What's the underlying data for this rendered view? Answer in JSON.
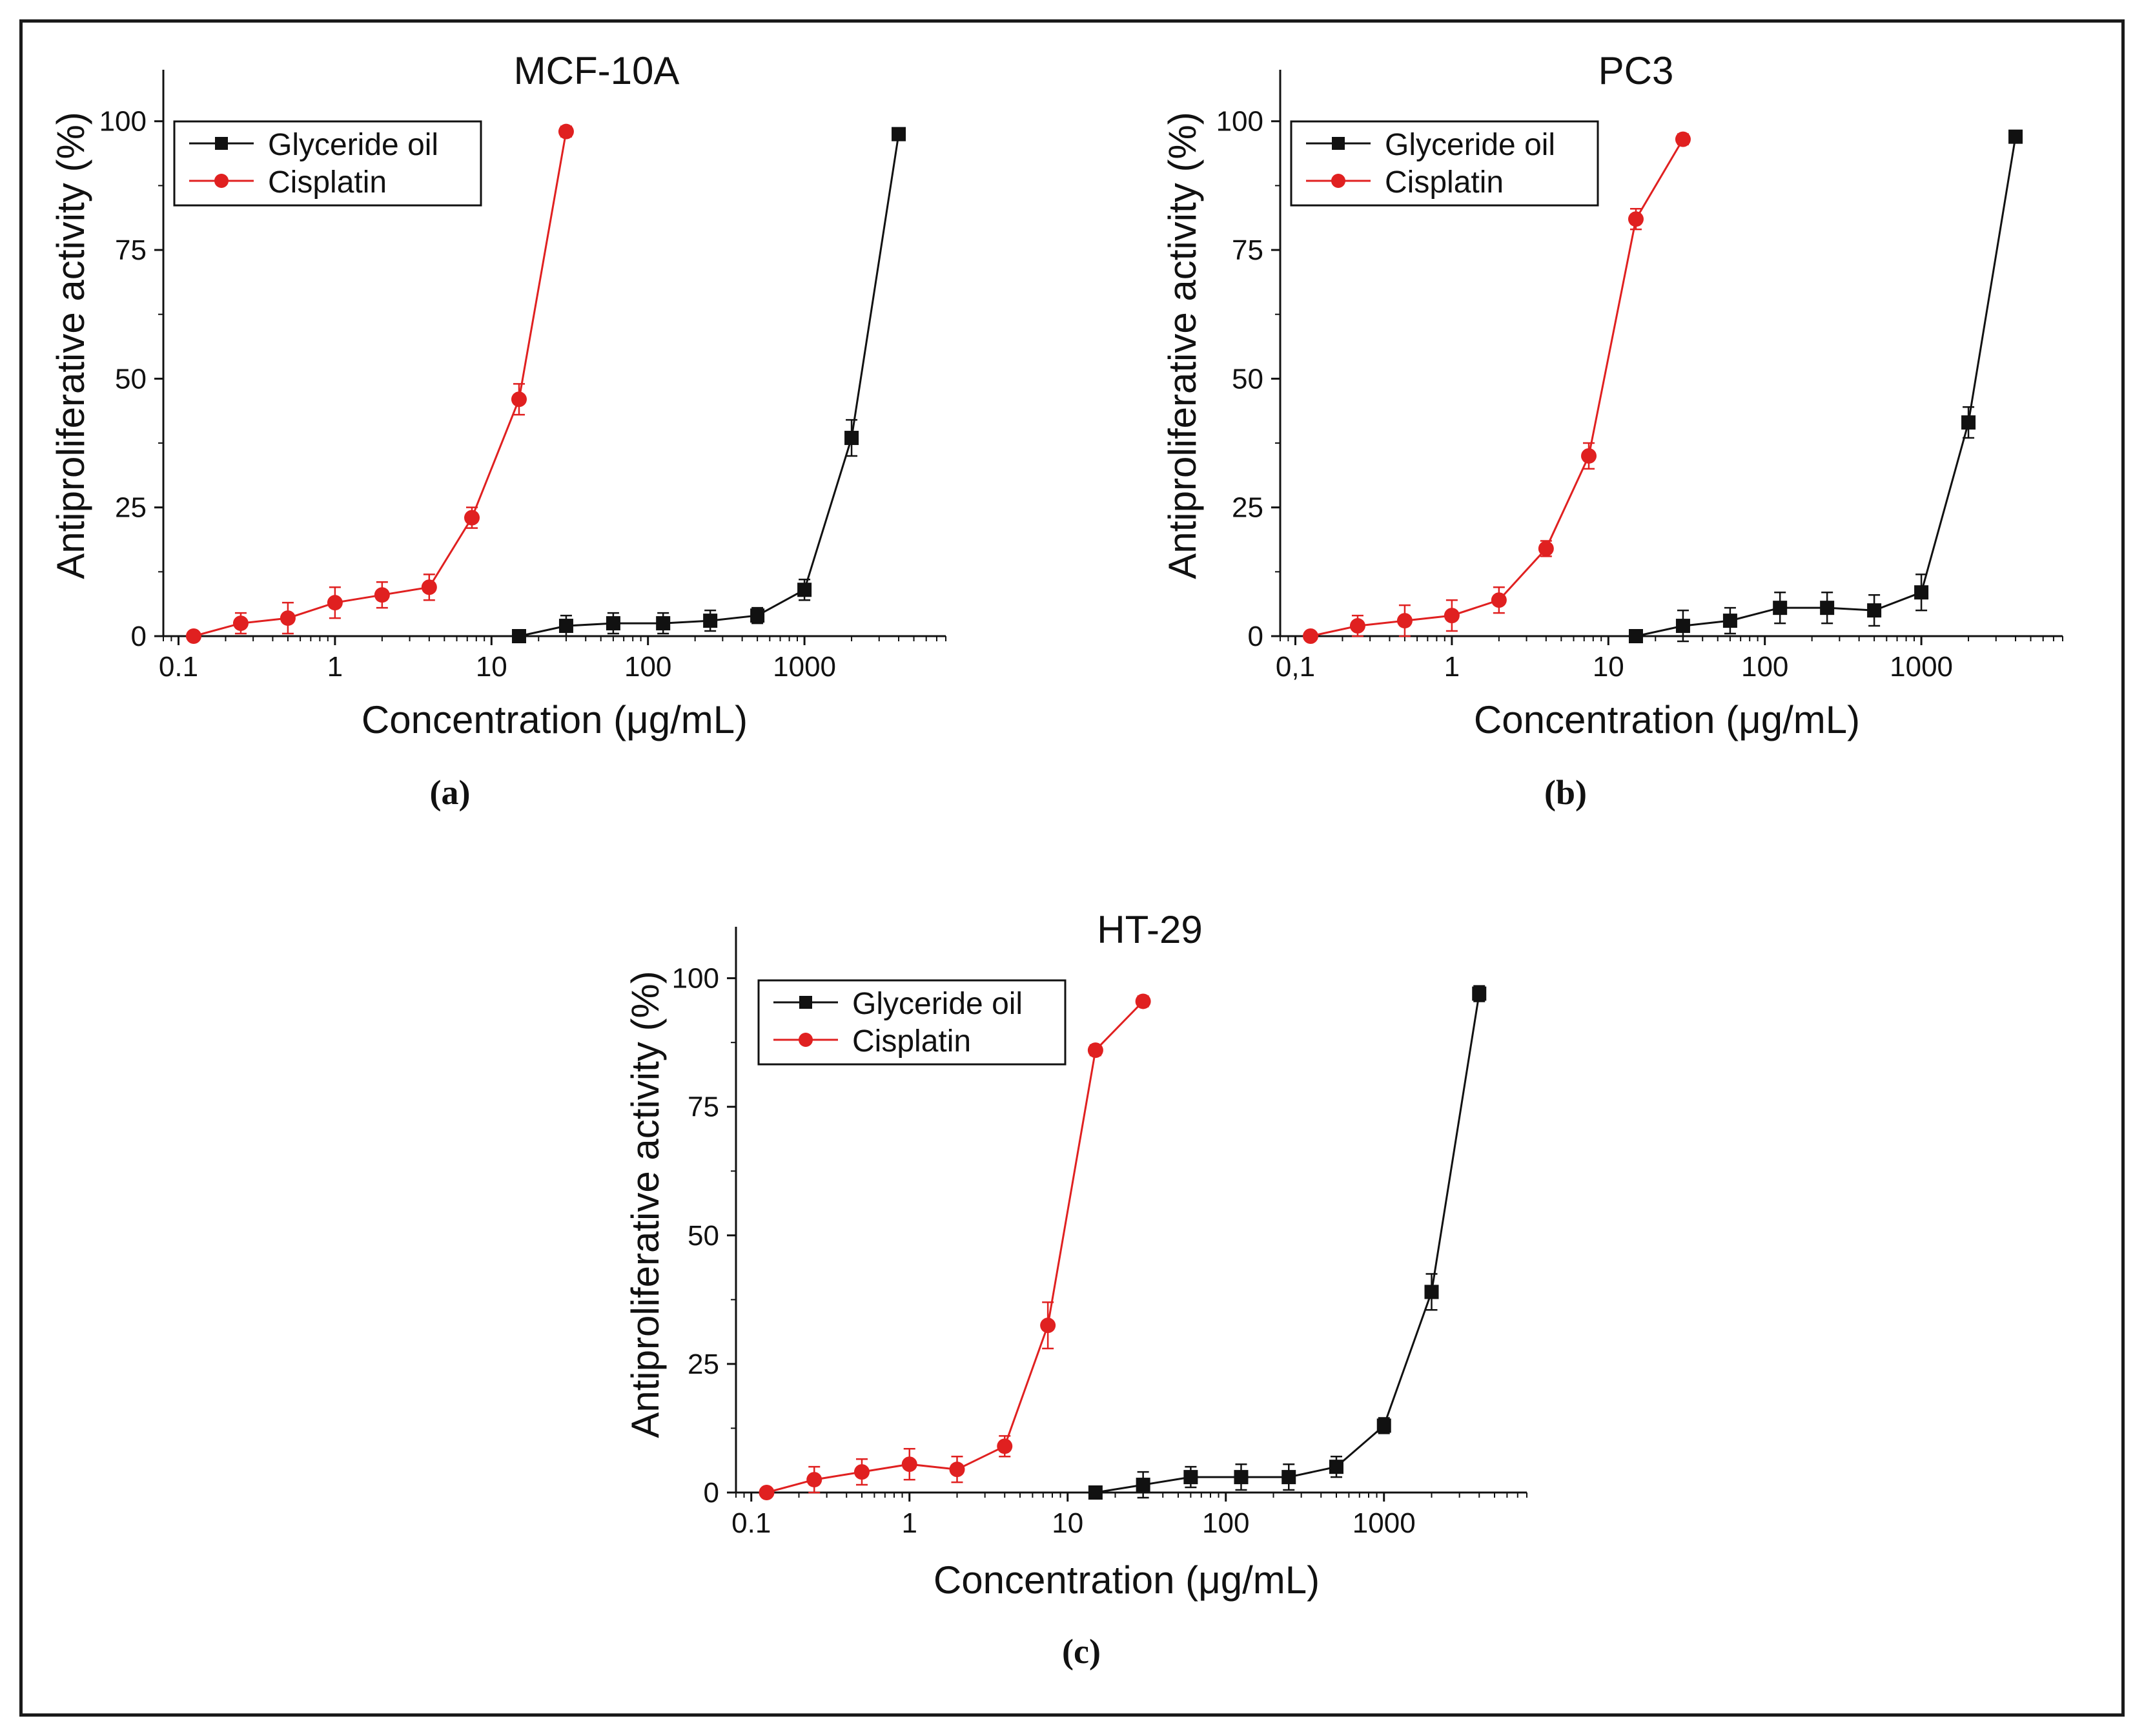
{
  "figure": {
    "colors": {
      "glyceride": "#111111",
      "cisplatin": "#e02020",
      "axis": "#111111"
    }
  },
  "chart_data": [
    {
      "type": "line",
      "panel_label": "(a)",
      "title": "MCF-10A",
      "xlabel": "Concentration (μg/mL)",
      "ylabel": "Antiproliferative activity (%)",
      "x_scale": "log",
      "xlim": [
        0.08,
        8000
      ],
      "ylim": [
        0,
        110
      ],
      "x_ticks": [
        0.1,
        1,
        10,
        100,
        1000
      ],
      "x_tick_labels": [
        "0.1",
        "1",
        "10",
        "100",
        "1000"
      ],
      "y_ticks": [
        0,
        25,
        50,
        75,
        100
      ],
      "y_tick_labels": [
        "0",
        "25",
        "50",
        "75",
        "100"
      ],
      "legend_position": "top-left",
      "series": [
        {
          "name": "Glyceride oil",
          "marker": "square",
          "color": "#111111",
          "x": [
            15,
            30,
            60,
            125,
            250,
            500,
            1000,
            2000,
            4000
          ],
          "y": [
            0,
            2,
            2.5,
            2.5,
            3,
            4,
            9,
            38.5,
            97.5
          ],
          "err": [
            0,
            2,
            2,
            2,
            2,
            1.5,
            2,
            3.5,
            1
          ]
        },
        {
          "name": "Cisplatin",
          "marker": "circle",
          "color": "#e02020",
          "x": [
            0.125,
            0.25,
            0.5,
            1,
            2,
            4,
            7.5,
            15,
            30
          ],
          "y": [
            0,
            2.5,
            3.5,
            6.5,
            8,
            9.5,
            23,
            46,
            98
          ],
          "err": [
            0,
            2,
            3,
            3,
            2.5,
            2.5,
            2,
            3,
            1
          ]
        }
      ]
    },
    {
      "type": "line",
      "panel_label": "(b)",
      "title": "PC3",
      "xlabel": "Concentration (μg/mL)",
      "ylabel": "Antiproliferative activity (%)",
      "x_scale": "log",
      "xlim": [
        0.08,
        8000
      ],
      "ylim": [
        0,
        110
      ],
      "x_ticks": [
        0.1,
        1,
        10,
        100,
        1000
      ],
      "x_tick_labels": [
        "0,1",
        "1",
        "10",
        "100",
        "1000"
      ],
      "y_ticks": [
        0,
        25,
        50,
        75,
        100
      ],
      "y_tick_labels": [
        "0",
        "25",
        "50",
        "75",
        "100"
      ],
      "legend_position": "top-left",
      "series": [
        {
          "name": "Glyceride oil",
          "marker": "square",
          "color": "#111111",
          "x": [
            15,
            30,
            60,
            125,
            250,
            500,
            1000,
            2000,
            4000
          ],
          "y": [
            0,
            2,
            3,
            5.5,
            5.5,
            5,
            8.5,
            41.5,
            97
          ],
          "err": [
            0,
            3,
            2.5,
            3,
            3,
            3,
            3.5,
            3,
            1
          ]
        },
        {
          "name": "Cisplatin",
          "marker": "circle",
          "color": "#e02020",
          "x": [
            0.125,
            0.25,
            0.5,
            1,
            2,
            4,
            7.5,
            15,
            30
          ],
          "y": [
            0,
            2,
            3,
            4,
            7,
            17,
            35,
            81,
            96.5
          ],
          "err": [
            0,
            2,
            3,
            3,
            2.5,
            1.5,
            2.5,
            2,
            1
          ]
        }
      ]
    },
    {
      "type": "line",
      "panel_label": "(c)",
      "title": "HT-29",
      "xlabel": "Concentration (μg/mL)",
      "ylabel": "Antiproliferative activity (%)",
      "x_scale": "log",
      "xlim": [
        0.08,
        8000
      ],
      "ylim": [
        0,
        110
      ],
      "x_ticks": [
        0.1,
        1,
        10,
        100,
        1000
      ],
      "x_tick_labels": [
        "0.1",
        "1",
        "10",
        "100",
        "1000"
      ],
      "y_ticks": [
        0,
        25,
        50,
        75,
        100
      ],
      "y_tick_labels": [
        "0",
        "25",
        "50",
        "75",
        "100"
      ],
      "legend_position": "top-left",
      "series": [
        {
          "name": "Glyceride oil",
          "marker": "square",
          "color": "#111111",
          "x": [
            15,
            30,
            60,
            125,
            250,
            500,
            1000,
            2000,
            4000
          ],
          "y": [
            0,
            1.5,
            3,
            3,
            3,
            5,
            13,
            39,
            97
          ],
          "err": [
            0,
            2.5,
            2,
            2.5,
            2.5,
            2,
            1.5,
            3.5,
            1.5
          ]
        },
        {
          "name": "Cisplatin",
          "marker": "circle",
          "color": "#e02020",
          "x": [
            0.125,
            0.25,
            0.5,
            1,
            2,
            4,
            7.5,
            15,
            30
          ],
          "y": [
            0,
            2.5,
            4,
            5.5,
            4.5,
            9,
            32.5,
            86,
            95.5
          ],
          "err": [
            0,
            2.5,
            2.5,
            3,
            2.5,
            2,
            4.5,
            1,
            1
          ]
        }
      ]
    }
  ]
}
